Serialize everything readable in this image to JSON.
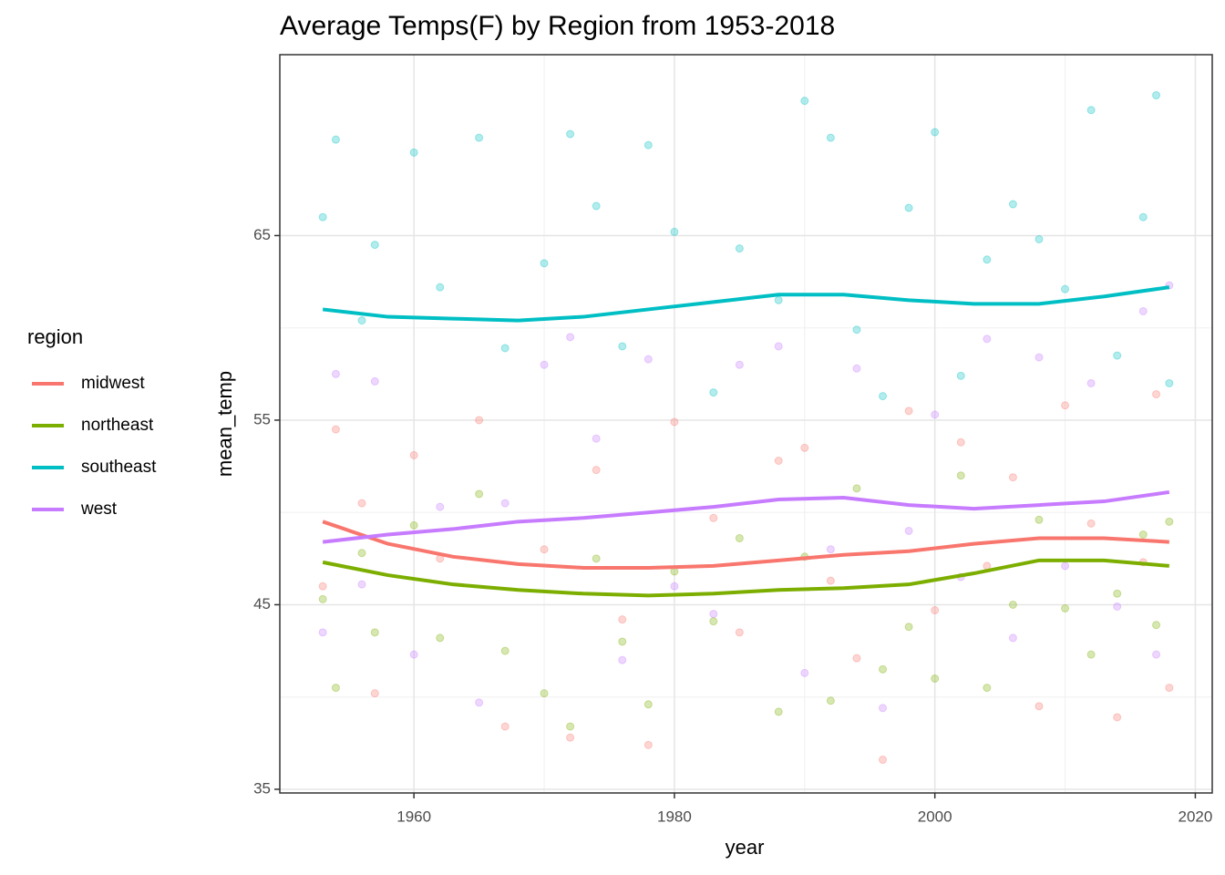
{
  "chart_data": {
    "type": "scatter",
    "title": "Average Temps(F) by Region from 1953-2018",
    "x_label": "year",
    "y_label": "mean_temp",
    "legend_title": "region",
    "xlim": [
      1949.7,
      2021.3
    ],
    "xticks": [
      1960,
      1980,
      2000,
      2020
    ],
    "ylim": [
      34.8,
      74.8
    ],
    "yticks": [
      35,
      45,
      55,
      65
    ],
    "grid": true,
    "legend_position": "left",
    "point_x": [
      1953,
      1954,
      1956,
      1957,
      1960,
      1962,
      1965,
      1967,
      1970,
      1972,
      1974,
      1976,
      1978,
      1980,
      1983,
      1985,
      1988,
      1990,
      1992,
      1994,
      1996,
      1998,
      2000,
      2002,
      2004,
      2006,
      2008,
      2010,
      2012,
      2014,
      2016,
      2017,
      2018
    ],
    "smooth_x": [
      1953,
      1958,
      1963,
      1968,
      1973,
      1978,
      1983,
      1988,
      1993,
      1998,
      2003,
      2008,
      2013,
      2018
    ],
    "series": [
      {
        "name": "midwest",
        "color": "#F8766D",
        "values": [
          46,
          54.5,
          50.5,
          40.2,
          53.1,
          47.5,
          55.0,
          38.4,
          48.0,
          37.8,
          52.3,
          44.2,
          37.4,
          54.9,
          49.7,
          43.5,
          52.8,
          53.5,
          46.3,
          42.1,
          36.6,
          55.5,
          44.7,
          53.8,
          47.1,
          51.9,
          39.5,
          55.8,
          49.4,
          38.9,
          47.3,
          56.4,
          40.5
        ],
        "smooth": [
          49.5,
          48.3,
          47.6,
          47.2,
          47.0,
          47.0,
          47.1,
          47.4,
          47.7,
          47.9,
          48.3,
          48.6,
          48.6,
          48.4
        ]
      },
      {
        "name": "northeast",
        "color": "#7CAE00",
        "values": [
          45.3,
          40.5,
          47.8,
          43.5,
          49.3,
          43.2,
          51.0,
          42.5,
          40.2,
          38.4,
          47.5,
          43.0,
          39.6,
          46.8,
          44.1,
          48.6,
          39.2,
          47.6,
          39.8,
          51.3,
          41.5,
          43.8,
          41.0,
          52.0,
          40.5,
          45.0,
          49.6,
          44.8,
          42.3,
          45.6,
          48.8,
          43.9,
          49.5
        ],
        "smooth": [
          47.3,
          46.6,
          46.1,
          45.8,
          45.6,
          45.5,
          45.6,
          45.8,
          45.9,
          46.1,
          46.7,
          47.4,
          47.4,
          47.1
        ]
      },
      {
        "name": "southeast",
        "color": "#00BFC4",
        "values": [
          66,
          70.2,
          60.4,
          64.5,
          69.5,
          62.2,
          70.3,
          58.9,
          63.5,
          70.5,
          66.6,
          59.0,
          69.9,
          65.2,
          56.5,
          64.3,
          61.5,
          72.3,
          70.3,
          59.9,
          56.3,
          66.5,
          70.6,
          57.4,
          63.7,
          66.7,
          64.8,
          62.1,
          71.8,
          58.5,
          66.0,
          72.6,
          57.0
        ],
        "smooth": [
          61.0,
          60.6,
          60.5,
          60.4,
          60.6,
          61.0,
          61.4,
          61.8,
          61.8,
          61.5,
          61.3,
          61.3,
          61.7,
          62.2
        ]
      },
      {
        "name": "west",
        "color": "#C77CFF",
        "values": [
          43.5,
          57.5,
          46.1,
          57.1,
          42.3,
          50.3,
          39.7,
          50.5,
          58.0,
          59.5,
          54.0,
          42.0,
          58.3,
          46.0,
          44.5,
          58.0,
          59.0,
          41.3,
          48.0,
          57.8,
          39.4,
          49.0,
          55.3,
          46.5,
          59.4,
          43.2,
          58.4,
          47.1,
          57.0,
          44.9,
          60.9,
          42.3,
          62.3
        ],
        "smooth": [
          48.4,
          48.8,
          49.1,
          49.5,
          49.7,
          50.0,
          50.3,
          50.7,
          50.8,
          50.4,
          50.2,
          50.4,
          50.6,
          51.1
        ]
      }
    ]
  }
}
